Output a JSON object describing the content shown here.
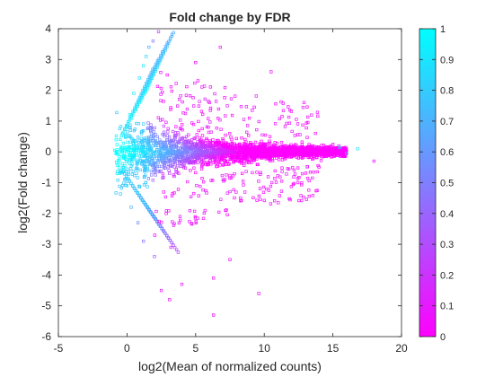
{
  "chart_data": {
    "type": "scatter",
    "title": "Fold change by FDR",
    "xlabel": "log2(Mean of normalized counts)",
    "ylabel": "log2(Fold change)",
    "xlim": [
      -5,
      20
    ],
    "ylim": [
      -6,
      4
    ],
    "x_ticks": [
      "-5",
      "0",
      "5",
      "10",
      "15",
      "20"
    ],
    "y_ticks": [
      "-6",
      "-5",
      "-4",
      "-3",
      "-2",
      "-1",
      "0",
      "1",
      "2",
      "3",
      "4"
    ],
    "grid": false,
    "marker": "open-square",
    "color_variable": "FDR",
    "colorbar": {
      "range": [
        0,
        1
      ],
      "ticks": [
        "0",
        "0.1",
        "0.2",
        "0.3",
        "0.4",
        "0.5",
        "0.6",
        "0.7",
        "0.8",
        "0.9",
        "1"
      ],
      "low_color": "#ff00ff",
      "high_color": "#00ffff",
      "placement": "right"
    },
    "points": [
      {
        "x": 2.3,
        "y": 3.9,
        "fdr": 0.3
      },
      {
        "x": 1.2,
        "y": 2.8,
        "fdr": 0.9
      },
      {
        "x": 1.6,
        "y": 3.4,
        "fdr": 0.7
      },
      {
        "x": 0.2,
        "y": 1.2,
        "fdr": 0.95
      },
      {
        "x": 0.5,
        "y": 1.9,
        "fdr": 0.9
      },
      {
        "x": 0.9,
        "y": 2.4,
        "fdr": 0.9
      },
      {
        "x": 1.4,
        "y": 3.1,
        "fdr": 0.85
      },
      {
        "x": 1.9,
        "y": 3.6,
        "fdr": 0.5
      },
      {
        "x": -0.9,
        "y": 0.05,
        "fdr": 1.0
      },
      {
        "x": -0.5,
        "y": 0.4,
        "fdr": 0.95
      },
      {
        "x": -0.3,
        "y": -0.5,
        "fdr": 0.95
      },
      {
        "x": 0.0,
        "y": -1.1,
        "fdr": 0.85
      },
      {
        "x": 0.3,
        "y": -1.8,
        "fdr": 0.7
      },
      {
        "x": 0.8,
        "y": -2.3,
        "fdr": 0.55
      },
      {
        "x": 1.2,
        "y": -2.9,
        "fdr": 0.45
      },
      {
        "x": 2.0,
        "y": -3.4,
        "fdr": 0.35
      },
      {
        "x": 3.2,
        "y": -3.1,
        "fdr": 0.1
      },
      {
        "x": 2.5,
        "y": -4.5,
        "fdr": 0.1
      },
      {
        "x": 4.0,
        "y": -4.3,
        "fdr": 0.1
      },
      {
        "x": 3.1,
        "y": -4.8,
        "fdr": 0.05
      },
      {
        "x": 6.3,
        "y": -5.3,
        "fdr": 0.05
      },
      {
        "x": 6.3,
        "y": -4.1,
        "fdr": 0.05
      },
      {
        "x": 9.6,
        "y": -4.6,
        "fdr": 0.05
      },
      {
        "x": 7.5,
        "y": -3.5,
        "fdr": 0.05
      },
      {
        "x": 6.8,
        "y": 3.4,
        "fdr": 0.05
      },
      {
        "x": 5.0,
        "y": 2.9,
        "fdr": 0.05
      },
      {
        "x": 10.5,
        "y": 2.6,
        "fdr": 0.05
      },
      {
        "x": 12.9,
        "y": 1.6,
        "fdr": 0.05
      },
      {
        "x": 18.0,
        "y": -0.3,
        "fdr": 0.05
      },
      {
        "x": 16.8,
        "y": 0.1,
        "fdr": 0.9
      },
      {
        "x": 16.0,
        "y": -0.05,
        "fdr": 0.7
      },
      {
        "x": 15.5,
        "y": 0.15,
        "fdr": 0.8
      }
    ]
  }
}
